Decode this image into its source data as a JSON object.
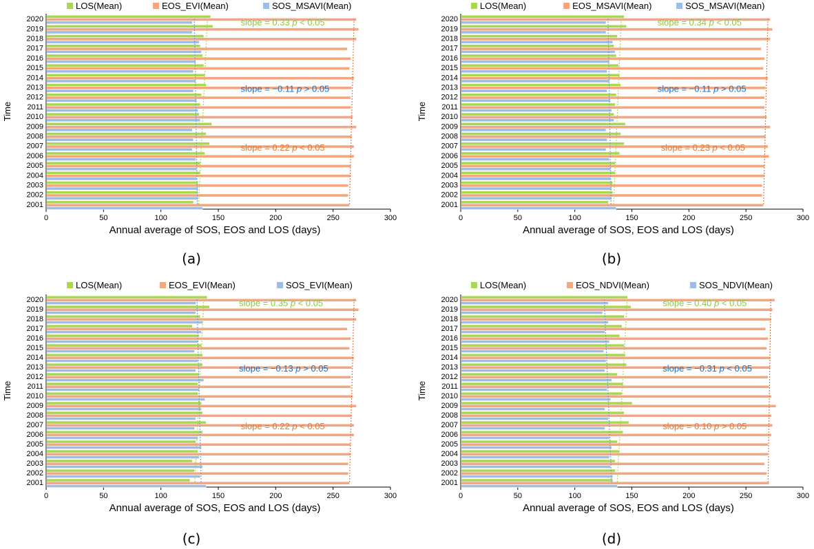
{
  "colors": {
    "los": "#a9d751",
    "eos": "#f4a67e",
    "sos": "#9dbde6",
    "los_trend": "#a9d751",
    "eos_trend": "#e07a45",
    "sos_trend": "#6aa2d8",
    "green_text": "#8cc84b",
    "blue_text": "#1a73c8",
    "orange_text": "#e07a3a"
  },
  "chart_data": [
    {
      "type": "bar",
      "panel_label": "(a)",
      "title": "",
      "xlabel": "Annual average of SOS, EOS and LOS (days)",
      "ylabel": "Time",
      "xlim": [
        0,
        300
      ],
      "xticks": [
        "0",
        "50",
        "100",
        "150",
        "200",
        "250",
        "300"
      ],
      "categories": [
        "2020",
        "2019",
        "2018",
        "2017",
        "2016",
        "2015",
        "2014",
        "2013",
        "2012",
        "2011",
        "2010",
        "2009",
        "2008",
        "2007",
        "2006",
        "2005",
        "2004",
        "2003",
        "2002",
        "2001"
      ],
      "legend": [
        "LOS(Mean)",
        "EOS_EVI(Mean)",
        "SOS_MSAVI(Mean)"
      ],
      "series": [
        {
          "name": "LOS(Mean)",
          "values": [
            143,
            145,
            137,
            134,
            136,
            137,
            138,
            139,
            135,
            134,
            133,
            144,
            139,
            142,
            138,
            134,
            134,
            132,
            132,
            128
          ]
        },
        {
          "name": "EOS_EVI(Mean)",
          "values": [
            270,
            272,
            270,
            262,
            265,
            264,
            268,
            266,
            265,
            265,
            267,
            270,
            266,
            268,
            268,
            265,
            265,
            263,
            263,
            264
          ]
        },
        {
          "name": "SOS_MSAVI(Mean)",
          "values": [
            127,
            127,
            133,
            135,
            130,
            128,
            130,
            128,
            131,
            132,
            134,
            127,
            128,
            127,
            130,
            131,
            131,
            132,
            132,
            136
          ]
        }
      ],
      "annotations": [
        {
          "text": "slope = 0.33 ",
          "italic": "p",
          "rest": " < 0.05",
          "color": "green"
        },
        {
          "text": "slope = −0.11 ",
          "italic": "p",
          "rest": " > 0.05",
          "color": "blue"
        },
        {
          "text": "slope = 0.22 ",
          "italic": "p",
          "rest": " < 0.05",
          "color": "orange"
        }
      ]
    },
    {
      "type": "bar",
      "panel_label": "(b)",
      "title": "",
      "xlabel": "Annual average of SOS, EOS and LOS (days)",
      "ylabel": "Time",
      "xlim": [
        0,
        300
      ],
      "xticks": [
        "0",
        "50",
        "100",
        "150",
        "200",
        "250",
        "300"
      ],
      "categories": [
        "2020",
        "2019",
        "2018",
        "2017",
        "2016",
        "2015",
        "2014",
        "2013",
        "2012",
        "2011",
        "2010",
        "2009",
        "2008",
        "2007",
        "2006",
        "2005",
        "2004",
        "2003",
        "2002",
        "2001"
      ],
      "legend": [
        "LOS(Mean)",
        "EOS_MSAVI(Mean)",
        "SOS_MSAVI(Mean)"
      ],
      "series": [
        {
          "name": "LOS(Mean)",
          "values": [
            143,
            145,
            137,
            134,
            136,
            138,
            139,
            140,
            136,
            135,
            134,
            144,
            140,
            143,
            139,
            135,
            135,
            133,
            133,
            129
          ]
        },
        {
          "name": "EOS_MSAVI(Mean)",
          "values": [
            271,
            273,
            271,
            263,
            266,
            265,
            269,
            267,
            266,
            266,
            268,
            271,
            267,
            269,
            270,
            266,
            266,
            264,
            264,
            265
          ]
        },
        {
          "name": "SOS_MSAVI(Mean)",
          "values": [
            127,
            127,
            133,
            135,
            130,
            128,
            130,
            128,
            131,
            132,
            134,
            127,
            128,
            127,
            130,
            131,
            131,
            132,
            132,
            136
          ]
        }
      ],
      "annotations": [
        {
          "text": "slope = 0.34 ",
          "italic": "p",
          "rest": " < 0.05",
          "color": "green"
        },
        {
          "text": "slope = −0.11 ",
          "italic": "p",
          "rest": " > 0.05",
          "color": "blue"
        },
        {
          "text": "slope = 0.23 ",
          "italic": "p",
          "rest": " < 0.05",
          "color": "orange"
        }
      ]
    },
    {
      "type": "bar",
      "panel_label": "(c)",
      "title": "",
      "xlabel": "Annual average of SOS, EOS and LOS (days)",
      "ylabel": "Time",
      "xlim": [
        0,
        300
      ],
      "xticks": [
        "0",
        "50",
        "100",
        "150",
        "200",
        "250",
        "300"
      ],
      "categories": [
        "2020",
        "2019",
        "2018",
        "2017",
        "2016",
        "2015",
        "2014",
        "2013",
        "2012",
        "2011",
        "2010",
        "2009",
        "2008",
        "2007",
        "2006",
        "2005",
        "2004",
        "2003",
        "2002",
        "2001"
      ],
      "legend": [
        "LOS(Mean)",
        "EOS_EVI(Mean)",
        "SOS_EVI(Mean)"
      ],
      "series": [
        {
          "name": "LOS(Mean)",
          "values": [
            140,
            142,
            134,
            127,
            133,
            135,
            136,
            136,
            133,
            132,
            132,
            135,
            136,
            139,
            136,
            130,
            132,
            127,
            129,
            125
          ]
        },
        {
          "name": "EOS_EVI(Mean)",
          "values": [
            270,
            272,
            270,
            262,
            265,
            264,
            268,
            266,
            265,
            265,
            267,
            270,
            266,
            268,
            268,
            265,
            265,
            263,
            263,
            264
          ]
        },
        {
          "name": "SOS_EVI(Mean)",
          "values": [
            130,
            130,
            136,
            135,
            132,
            129,
            132,
            130,
            137,
            133,
            138,
            135,
            130,
            129,
            132,
            135,
            133,
            136,
            134,
            139
          ]
        }
      ],
      "annotations": [
        {
          "text": "slope = 0.35 ",
          "italic": "p",
          "rest": " < 0.05",
          "color": "green"
        },
        {
          "text": "slope = −0.13 ",
          "italic": "p",
          "rest": " > 0.05",
          "color": "blue"
        },
        {
          "text": "slope = 0.22 ",
          "italic": "p",
          "rest": " < 0.05",
          "color": "orange"
        }
      ]
    },
    {
      "type": "bar",
      "panel_label": "(d)",
      "title": "",
      "xlabel": "Annual average of SOS, EOS and LOS (days)",
      "ylabel": "Time",
      "xlim": [
        0,
        300
      ],
      "xticks": [
        "0",
        "50",
        "100",
        "150",
        "200",
        "250",
        "300"
      ],
      "categories": [
        "2020",
        "2019",
        "2018",
        "2017",
        "2016",
        "2015",
        "2014",
        "2013",
        "2012",
        "2011",
        "2010",
        "2009",
        "2008",
        "2007",
        "2006",
        "2005",
        "2004",
        "2003",
        "2002",
        "2001"
      ],
      "legend": [
        "LOS(Mean)",
        "EOS_NDVI(Mean)",
        "SOS_NDVI(Mean)"
      ],
      "series": [
        {
          "name": "LOS(Mean)",
          "values": [
            146,
            149,
            143,
            141,
            139,
            143,
            144,
            145,
            137,
            142,
            141,
            150,
            143,
            147,
            142,
            137,
            139,
            135,
            135,
            133
          ]
        },
        {
          "name": "EOS_NDVI(Mean)",
          "values": [
            275,
            273,
            272,
            267,
            269,
            268,
            271,
            271,
            269,
            270,
            272,
            276,
            272,
            273,
            272,
            269,
            269,
            266,
            268,
            270
          ]
        },
        {
          "name": "SOS_NDVI(Mean)",
          "values": [
            129,
            124,
            129,
            126,
            130,
            125,
            127,
            126,
            132,
            128,
            131,
            126,
            129,
            126,
            130,
            132,
            130,
            131,
            133,
            137
          ]
        }
      ],
      "annotations": [
        {
          "text": "slope = 0.40 ",
          "italic": "p",
          "rest": " < 0.05",
          "color": "green"
        },
        {
          "text": "slope = −0.31 ",
          "italic": "p",
          "rest": " < 0.05",
          "color": "blue"
        },
        {
          "text": "slope = 0.10 ",
          "italic": "p",
          "rest": " > 0.05",
          "color": "orange"
        }
      ]
    }
  ]
}
